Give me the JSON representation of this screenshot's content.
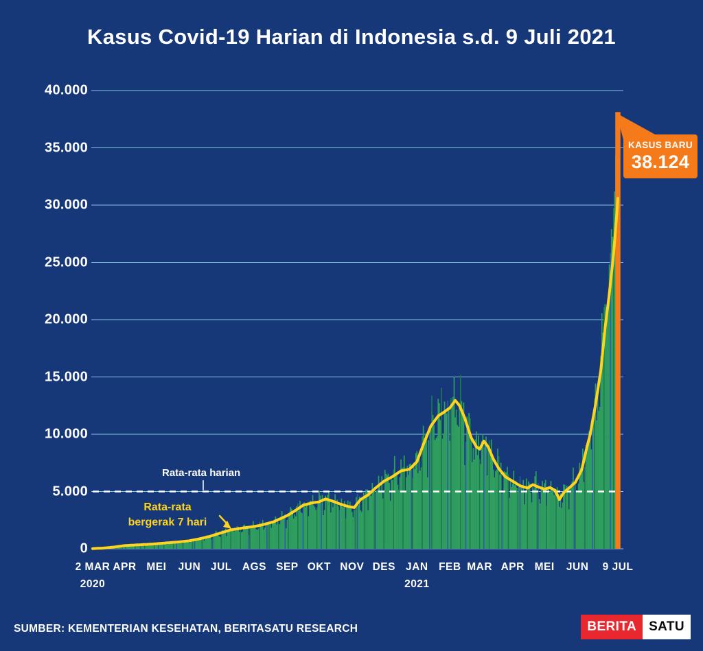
{
  "title": "Kasus Covid-19 Harian di Indonesia s.d. 9 Juli 2021",
  "source": "SUMBER: KEMENTERIAN KESEHATAN, BERITASATU RESEARCH",
  "logo": {
    "part1": "BERITA",
    "part2": "SATU"
  },
  "annotations": {
    "daily_avg_label": "Rata-rata harian",
    "moving_avg_label_line1": "Rata-rata",
    "moving_avg_label_line2": "bergerak 7 hari",
    "callout_title": "KASUS BARU",
    "callout_value": "38.124"
  },
  "colors": {
    "background": "#163879",
    "gridline": "#89c5e6",
    "bar": "#2f9e5f",
    "bar_dark": "#1e7a4b",
    "bar_blue": "#2a5f9e",
    "line": "#ffd41f",
    "highlight": "#f57a1a",
    "reference": "#ffffff",
    "logo_red": "#e8282e"
  },
  "chart_data": {
    "type": "bar",
    "title": "Kasus Covid-19 Harian di Indonesia s.d. 9 Juli 2021",
    "xlabel": "",
    "ylabel": "",
    "ylim": [
      0,
      40000
    ],
    "grid": true,
    "y_ticks": [
      "40.000",
      "35.000",
      "30.000",
      "25.000",
      "20.000",
      "15.000",
      "10.000",
      "5.000",
      "0"
    ],
    "y_tick_values": [
      40000,
      35000,
      30000,
      25000,
      20000,
      15000,
      10000,
      5000,
      0
    ],
    "x_ticks": [
      {
        "label": "2 MAR",
        "sub": "2020",
        "day": 0
      },
      {
        "label": "APR",
        "day": 30
      },
      {
        "label": "MEI",
        "day": 60
      },
      {
        "label": "JUN",
        "day": 91
      },
      {
        "label": "JUL",
        "day": 121
      },
      {
        "label": "AGS",
        "day": 152
      },
      {
        "label": "SEP",
        "day": 183
      },
      {
        "label": "OKT",
        "day": 213
      },
      {
        "label": "NOV",
        "day": 244
      },
      {
        "label": "DES",
        "day": 274
      },
      {
        "label": "JAN",
        "sub": "2021",
        "day": 305
      },
      {
        "label": "FEB",
        "day": 336
      },
      {
        "label": "MAR",
        "day": 364
      },
      {
        "label": "APR",
        "day": 395
      },
      {
        "label": "MEI",
        "day": 425
      },
      {
        "label": "JUN",
        "day": 456
      },
      {
        "label": "9 JUL",
        "day": 494
      }
    ],
    "series": [
      {
        "name": "Kasus harian",
        "type": "bar"
      },
      {
        "name": "Rata-rata bergerak 7 hari",
        "type": "line"
      }
    ],
    "reference_line": {
      "value": 5000,
      "label": "Rata-rata harian"
    },
    "latest": {
      "date": "9 JUL",
      "value": 38124,
      "label": "KASUS BARU"
    },
    "avg7_points": [
      [
        0,
        20
      ],
      [
        10,
        60
      ],
      [
        20,
        150
      ],
      [
        30,
        280
      ],
      [
        40,
        330
      ],
      [
        50,
        380
      ],
      [
        60,
        440
      ],
      [
        70,
        520
      ],
      [
        80,
        590
      ],
      [
        91,
        700
      ],
      [
        100,
        860
      ],
      [
        110,
        1080
      ],
      [
        121,
        1400
      ],
      [
        130,
        1650
      ],
      [
        140,
        1800
      ],
      [
        152,
        1950
      ],
      [
        160,
        2100
      ],
      [
        170,
        2350
      ],
      [
        183,
        2900
      ],
      [
        190,
        3300
      ],
      [
        198,
        3800
      ],
      [
        206,
        4000
      ],
      [
        213,
        4100
      ],
      [
        219,
        4350
      ],
      [
        226,
        4150
      ],
      [
        233,
        3900
      ],
      [
        240,
        3700
      ],
      [
        246,
        3600
      ],
      [
        252,
        4300
      ],
      [
        259,
        4700
      ],
      [
        266,
        5300
      ],
      [
        274,
        5900
      ],
      [
        282,
        6300
      ],
      [
        290,
        6800
      ],
      [
        298,
        6950
      ],
      [
        305,
        7600
      ],
      [
        311,
        9100
      ],
      [
        318,
        10700
      ],
      [
        325,
        11600
      ],
      [
        330,
        11900
      ],
      [
        336,
        12300
      ],
      [
        341,
        12950
      ],
      [
        345,
        12500
      ],
      [
        350,
        11400
      ],
      [
        356,
        9700
      ],
      [
        361,
        8900
      ],
      [
        364,
        8700
      ],
      [
        368,
        9400
      ],
      [
        372,
        8900
      ],
      [
        377,
        7800
      ],
      [
        382,
        7000
      ],
      [
        388,
        6300
      ],
      [
        395,
        5900
      ],
      [
        402,
        5500
      ],
      [
        409,
        5300
      ],
      [
        414,
        5600
      ],
      [
        419,
        5400
      ],
      [
        425,
        5200
      ],
      [
        430,
        5350
      ],
      [
        435,
        5100
      ],
      [
        439,
        4300
      ],
      [
        443,
        4900
      ],
      [
        448,
        5300
      ],
      [
        454,
        5800
      ],
      [
        460,
        6900
      ],
      [
        465,
        8900
      ],
      [
        468,
        10000
      ],
      [
        473,
        12600
      ],
      [
        478,
        15600
      ],
      [
        482,
        19300
      ],
      [
        486,
        22300
      ],
      [
        490,
        25800
      ],
      [
        493,
        29300
      ],
      [
        494,
        30600
      ]
    ],
    "final_bars": {
      "479": 20574,
      "480": 18872,
      "481": 21095,
      "482": 21342,
      "483": 20694,
      "484": 20467,
      "485": 21807,
      "486": 24836,
      "487": 25830,
      "488": 27913,
      "489": 27233,
      "490": 29745,
      "491": 31189,
      "492": 34379,
      "493": 38124,
      "494": 38124
    }
  }
}
